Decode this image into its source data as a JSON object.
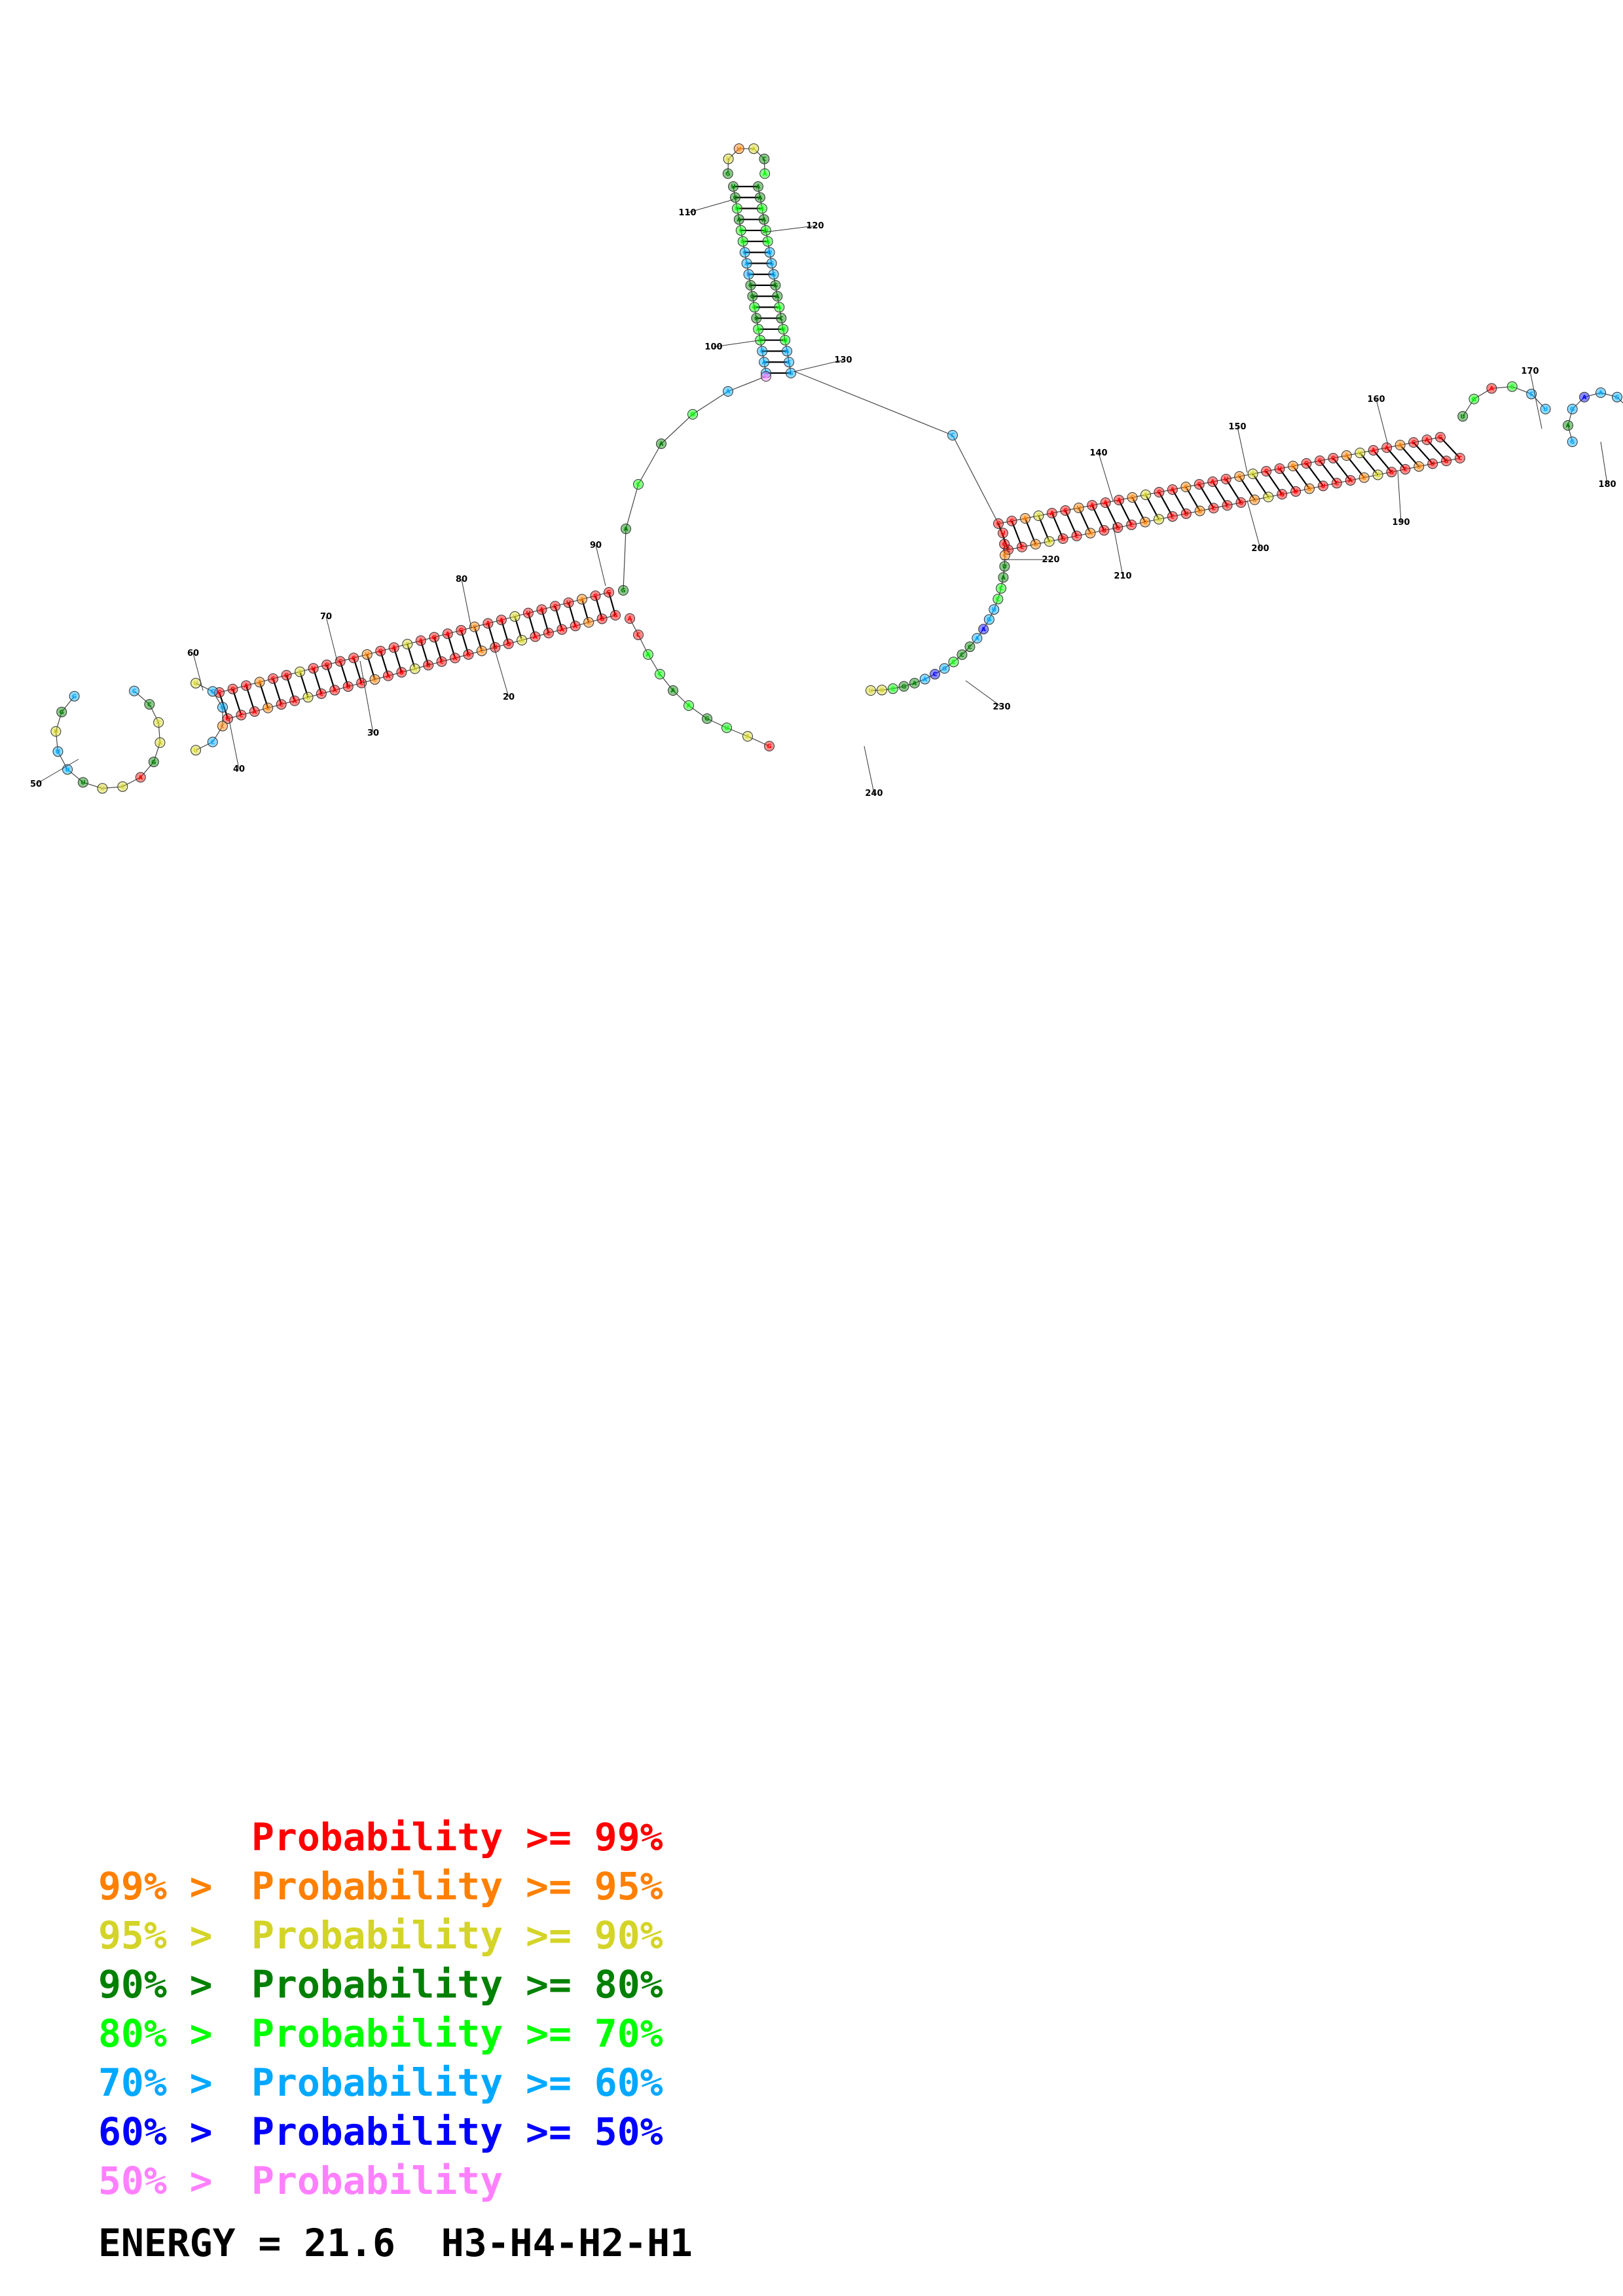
{
  "legend": {
    "rows": [
      {
        "prefix": "",
        "range": "Probability >= 99%",
        "color": "#ff0000"
      },
      {
        "prefix": "99% > ",
        "range": "Probability >= 95%",
        "color": "#ff8000"
      },
      {
        "prefix": "95% > ",
        "range": "Probability >= 90%",
        "color": "#d4d428"
      },
      {
        "prefix": "90% > ",
        "range": "Probability >= 80%",
        "color": "#008000"
      },
      {
        "prefix": "80% > ",
        "range": "Probability >= 70%",
        "color": "#00ff00"
      },
      {
        "prefix": "70% > ",
        "range": "Probability >= 60%",
        "color": "#00a8ff"
      },
      {
        "prefix": "60% > ",
        "range": "Probability >= 50%",
        "color": "#0000ff"
      },
      {
        "prefix": "50% > ",
        "range": "Probability",
        "color": "#ff80ff"
      }
    ],
    "energy_label": "ENERGY = 21.6",
    "structure_label": "H3-H4-H2-H1"
  },
  "diagram": {
    "position_labels": [
      "20",
      "30",
      "40",
      "50",
      "60",
      "70",
      "80",
      "90",
      "100",
      "110",
      "120",
      "130",
      "140",
      "150",
      "160",
      "170",
      "180",
      "190",
      "200",
      "210",
      "220",
      "230",
      "240"
    ],
    "base_colors": {
      "very_high": "#ff0000",
      "high": "#ff8000",
      "medium_high": "#d4d428",
      "medium": "#008000",
      "medium_low": "#00ff00",
      "low": "#00a8ff",
      "very_low": "#0000ff",
      "lowest": "#ff80ff"
    }
  }
}
